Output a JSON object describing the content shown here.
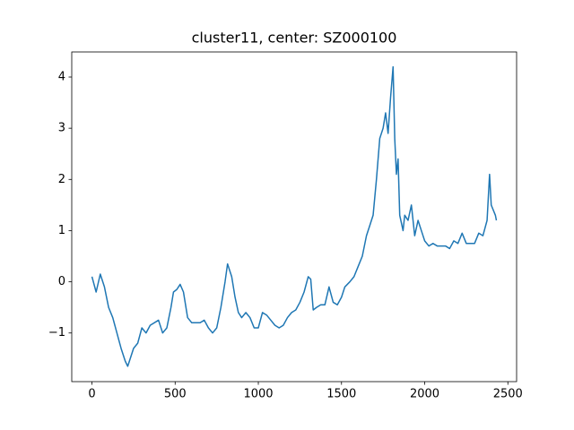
{
  "chart_data": {
    "type": "line",
    "title": "cluster11, center: SZ000100",
    "x": [
      0,
      25,
      50,
      75,
      100,
      125,
      150,
      175,
      200,
      215,
      250,
      275,
      300,
      325,
      350,
      400,
      425,
      450,
      475,
      490,
      510,
      530,
      550,
      575,
      600,
      650,
      675,
      700,
      725,
      750,
      775,
      800,
      815,
      840,
      860,
      880,
      900,
      925,
      950,
      975,
      1000,
      1025,
      1050,
      1075,
      1100,
      1125,
      1150,
      1175,
      1200,
      1225,
      1250,
      1275,
      1300,
      1315,
      1330,
      1350,
      1375,
      1400,
      1425,
      1450,
      1475,
      1500,
      1520,
      1550,
      1575,
      1600,
      1625,
      1650,
      1670,
      1690,
      1710,
      1730,
      1750,
      1765,
      1780,
      1795,
      1810,
      1820,
      1830,
      1840,
      1850,
      1870,
      1880,
      1900,
      1920,
      1940,
      1960,
      1980,
      2000,
      2025,
      2050,
      2075,
      2100,
      2125,
      2150,
      2175,
      2200,
      2225,
      2250,
      2275,
      2300,
      2325,
      2350,
      2375,
      2390,
      2400,
      2425,
      2431
    ],
    "series": [
      {
        "color": "#1f77b4",
        "values": [
          0.1,
          -0.2,
          0.15,
          -0.1,
          -0.5,
          -0.7,
          -1.0,
          -1.3,
          -1.55,
          -1.65,
          -1.3,
          -1.2,
          -0.9,
          -1.0,
          -0.85,
          -0.75,
          -1.0,
          -0.9,
          -0.5,
          -0.2,
          -0.15,
          -0.05,
          -0.2,
          -0.7,
          -0.8,
          -0.8,
          -0.75,
          -0.9,
          -1.0,
          -0.9,
          -0.5,
          0.0,
          0.35,
          0.1,
          -0.3,
          -0.6,
          -0.7,
          -0.6,
          -0.7,
          -0.9,
          -0.9,
          -0.6,
          -0.65,
          -0.75,
          -0.85,
          -0.9,
          -0.85,
          -0.7,
          -0.6,
          -0.55,
          -0.4,
          -0.2,
          0.1,
          0.05,
          -0.55,
          -0.5,
          -0.45,
          -0.45,
          -0.1,
          -0.4,
          -0.45,
          -0.3,
          -0.1,
          0.0,
          0.1,
          0.3,
          0.5,
          0.9,
          1.1,
          1.3,
          2.0,
          2.8,
          3.0,
          3.3,
          2.9,
          3.6,
          4.2,
          2.8,
          2.1,
          2.4,
          1.3,
          1.0,
          1.3,
          1.2,
          1.5,
          0.9,
          1.2,
          1.0,
          0.8,
          0.7,
          0.75,
          0.7,
          0.7,
          0.7,
          0.65,
          0.8,
          0.75,
          0.95,
          0.75,
          0.75,
          0.75,
          0.95,
          0.9,
          1.2,
          2.1,
          1.5,
          1.3,
          1.2
        ]
      }
    ],
    "xlim": [
      -121.5,
      2552.5
    ],
    "ylim": [
      -1.95,
      4.49
    ],
    "xticks": [
      0,
      500,
      1000,
      1500,
      2000,
      2500
    ],
    "yticks": [
      {
        "value": -1,
        "label": "−1"
      },
      0,
      1,
      2,
      3,
      4
    ]
  }
}
